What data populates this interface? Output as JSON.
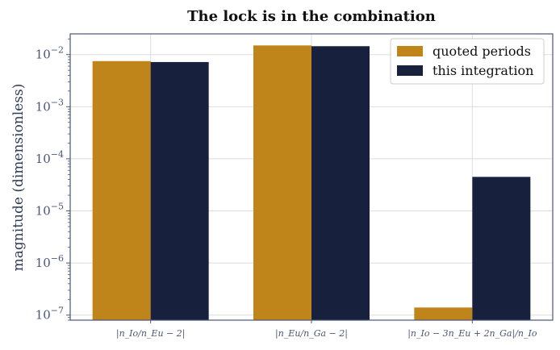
{
  "chart_data": {
    "type": "bar",
    "title": "The lock is in the combination",
    "ylabel": "magnitude (dimensionless)",
    "xlabel": "",
    "yscale": "log",
    "ylim": [
      8e-08,
      0.025
    ],
    "grid": true,
    "legend": "top-right",
    "categories": [
      "|n_Io/n_Eu − 2|",
      "|n_Eu/n_Ga − 2|",
      "|n_Io − 3n_Eu + 2n_Ga|/n_Io"
    ],
    "series": [
      {
        "name": "quoted periods",
        "color": "#bf851b",
        "values": [
          0.0075,
          0.015,
          1.4e-07
        ]
      },
      {
        "name": "this integration",
        "color": "#17213d",
        "values": [
          0.0072,
          0.0145,
          4.5e-05
        ]
      }
    ],
    "yticks": [
      {
        "value": 0.01,
        "label": "10^-2"
      },
      {
        "value": 0.001,
        "label": "10^-3"
      },
      {
        "value": 0.0001,
        "label": "10^-4"
      },
      {
        "value": 1e-05,
        "label": "10^-5"
      },
      {
        "value": 1e-06,
        "label": "10^-6"
      },
      {
        "value": 1e-07,
        "label": "10^-7"
      }
    ]
  }
}
